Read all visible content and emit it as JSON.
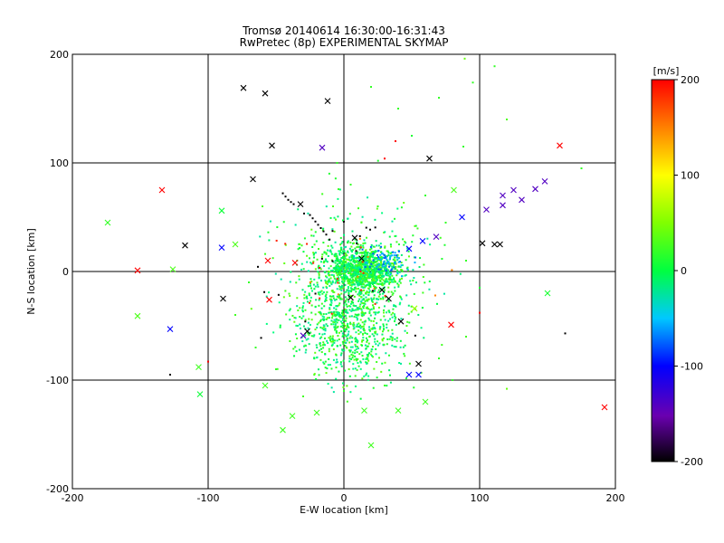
{
  "chart_data": {
    "type": "scatter",
    "title": "Tromsø 20140614 16:30:00-16:31:43",
    "subtitle": "RwPretec (8p) EXPERIMENTAL SKYMAP",
    "xlabel": "E-W location [km]",
    "ylabel": "N-S location [km]",
    "xlim": [
      -200,
      200
    ],
    "ylim": [
      -200,
      200
    ],
    "xticks": [
      -200,
      -100,
      0,
      100,
      200
    ],
    "yticks": [
      -200,
      -100,
      0,
      100,
      200
    ],
    "grid": true,
    "colorbar": {
      "label": "[m/s]",
      "range": [
        -200,
        200
      ],
      "ticks": [
        200,
        100,
        0,
        -100,
        -200
      ],
      "colormap": "rainbow"
    },
    "cross_points": [
      {
        "x": -74,
        "y": 169,
        "v": -200
      },
      {
        "x": -58,
        "y": 164,
        "v": -200
      },
      {
        "x": -12,
        "y": 157,
        "v": -200
      },
      {
        "x": -53,
        "y": 116,
        "v": -200
      },
      {
        "x": -16,
        "y": 114,
        "v": -140
      },
      {
        "x": 63,
        "y": 104,
        "v": -200
      },
      {
        "x": 159,
        "y": 116,
        "v": 200
      },
      {
        "x": -67,
        "y": 85,
        "v": -200
      },
      {
        "x": 81,
        "y": 75,
        "v": 30
      },
      {
        "x": -134,
        "y": 75,
        "v": 200
      },
      {
        "x": -32,
        "y": 62,
        "v": -200
      },
      {
        "x": 117,
        "y": 70,
        "v": -140
      },
      {
        "x": 131,
        "y": 66,
        "v": -140
      },
      {
        "x": 141,
        "y": 76,
        "v": -140
      },
      {
        "x": 148,
        "y": 83,
        "v": -140
      },
      {
        "x": 125,
        "y": 75,
        "v": -140
      },
      {
        "x": 117,
        "y": 61,
        "v": -140
      },
      {
        "x": 105,
        "y": 57,
        "v": -140
      },
      {
        "x": 87,
        "y": 50,
        "v": -100
      },
      {
        "x": -174,
        "y": 45,
        "v": 20
      },
      {
        "x": -90,
        "y": 56,
        "v": 5
      },
      {
        "x": -117,
        "y": 24,
        "v": -200
      },
      {
        "x": -90,
        "y": 22,
        "v": -100
      },
      {
        "x": 102,
        "y": 26,
        "v": -200
      },
      {
        "x": 111,
        "y": 25,
        "v": -200
      },
      {
        "x": 115,
        "y": 25,
        "v": -200
      },
      {
        "x": 8,
        "y": 31,
        "v": -200
      },
      {
        "x": 68,
        "y": 32,
        "v": -140
      },
      {
        "x": 58,
        "y": 28,
        "v": -100
      },
      {
        "x": 48,
        "y": 21,
        "v": -100
      },
      {
        "x": -152,
        "y": 1,
        "v": 200
      },
      {
        "x": -126,
        "y": 2,
        "v": 30
      },
      {
        "x": -56,
        "y": 10,
        "v": 200
      },
      {
        "x": -36,
        "y": 8,
        "v": 200
      },
      {
        "x": 13,
        "y": 12,
        "v": -200
      },
      {
        "x": -80,
        "y": 25,
        "v": 30
      },
      {
        "x": -89,
        "y": -25,
        "v": -200
      },
      {
        "x": -55,
        "y": -26,
        "v": 200
      },
      {
        "x": 5,
        "y": -24,
        "v": -200
      },
      {
        "x": 33,
        "y": -25,
        "v": -200
      },
      {
        "x": 28,
        "y": -17,
        "v": -200
      },
      {
        "x": 150,
        "y": -20,
        "v": 10
      },
      {
        "x": -152,
        "y": -41,
        "v": 30
      },
      {
        "x": -128,
        "y": -53,
        "v": -100
      },
      {
        "x": 42,
        "y": -46,
        "v": -200
      },
      {
        "x": 79,
        "y": -49,
        "v": 200
      },
      {
        "x": -30,
        "y": -59,
        "v": -140
      },
      {
        "x": -27,
        "y": -55,
        "v": -200
      },
      {
        "x": 52,
        "y": -34,
        "v": 60
      },
      {
        "x": 55,
        "y": -85,
        "v": -200
      },
      {
        "x": 48,
        "y": -95,
        "v": -100
      },
      {
        "x": 55,
        "y": -95,
        "v": -100
      },
      {
        "x": -106,
        "y": -113,
        "v": 5
      },
      {
        "x": -58,
        "y": -105,
        "v": 25
      },
      {
        "x": -45,
        "y": -146,
        "v": 25
      },
      {
        "x": 20,
        "y": -160,
        "v": 25
      },
      {
        "x": 192,
        "y": -125,
        "v": 200
      },
      {
        "x": -38,
        "y": -133,
        "v": 25
      },
      {
        "x": -20,
        "y": -130,
        "v": 25
      },
      {
        "x": 15,
        "y": -128,
        "v": 25
      },
      {
        "x": 40,
        "y": -128,
        "v": 25
      },
      {
        "x": 60,
        "y": -120,
        "v": 25
      },
      {
        "x": -107,
        "y": -88,
        "v": 25
      }
    ],
    "dot_points": [
      {
        "x": 89,
        "y": 196,
        "v": 40
      },
      {
        "x": 111,
        "y": 189,
        "v": 20
      },
      {
        "x": 95,
        "y": 174,
        "v": 20
      },
      {
        "x": 20,
        "y": 170,
        "v": 20
      },
      {
        "x": 38,
        "y": 120,
        "v": 200
      },
      {
        "x": 30,
        "y": 104,
        "v": 200
      },
      {
        "x": -100,
        "y": -83,
        "v": 200
      },
      {
        "x": 163,
        "y": -57,
        "v": -200
      },
      {
        "x": -128,
        "y": -95,
        "v": -200
      },
      {
        "x": 100,
        "y": -38,
        "v": 200
      },
      {
        "x": -45,
        "y": 72,
        "v": -200
      },
      {
        "x": -43,
        "y": 69,
        "v": -200
      },
      {
        "x": -41,
        "y": 66,
        "v": -200
      },
      {
        "x": -39,
        "y": 64,
        "v": -200
      },
      {
        "x": -37,
        "y": 62,
        "v": -200
      },
      {
        "x": -25,
        "y": 52,
        "v": -200
      },
      {
        "x": -23,
        "y": 49,
        "v": -200
      },
      {
        "x": -21,
        "y": 46,
        "v": -200
      },
      {
        "x": -19,
        "y": 43,
        "v": -200
      },
      {
        "x": -17,
        "y": 40,
        "v": -200
      },
      {
        "x": -15,
        "y": 37,
        "v": -200
      },
      {
        "x": -13,
        "y": 34,
        "v": -200
      },
      {
        "x": 50,
        "y": 125,
        "v": 10
      },
      {
        "x": -60,
        "y": 60,
        "v": 30
      },
      {
        "x": 70,
        "y": 160,
        "v": 20
      },
      {
        "x": 40,
        "y": 150,
        "v": 20
      },
      {
        "x": 100,
        "y": -15,
        "v": 10
      },
      {
        "x": 88,
        "y": 115,
        "v": 20
      },
      {
        "x": 120,
        "y": 140,
        "v": 30
      },
      {
        "x": 175,
        "y": 95,
        "v": 20
      },
      {
        "x": -5,
        "y": 100,
        "v": 20
      },
      {
        "x": 5,
        "y": 80,
        "v": 20
      },
      {
        "x": -8,
        "y": 60,
        "v": 30
      },
      {
        "x": 25,
        "y": 60,
        "v": 20
      },
      {
        "x": 60,
        "y": 70,
        "v": 20
      },
      {
        "x": 75,
        "y": 45,
        "v": 20
      },
      {
        "x": 90,
        "y": 10,
        "v": 20
      },
      {
        "x": -70,
        "y": -10,
        "v": 20
      },
      {
        "x": -80,
        "y": -40,
        "v": 25
      },
      {
        "x": -65,
        "y": -70,
        "v": 20
      },
      {
        "x": 70,
        "y": -80,
        "v": 20
      },
      {
        "x": 90,
        "y": -60,
        "v": 25
      },
      {
        "x": 80,
        "y": -100,
        "v": 20
      },
      {
        "x": -50,
        "y": -90,
        "v": 20
      },
      {
        "x": -30,
        "y": -115,
        "v": 25
      },
      {
        "x": 0,
        "y": -110,
        "v": 20
      },
      {
        "x": 30,
        "y": -105,
        "v": 25
      },
      {
        "x": 120,
        "y": -108,
        "v": 40
      }
    ]
  }
}
